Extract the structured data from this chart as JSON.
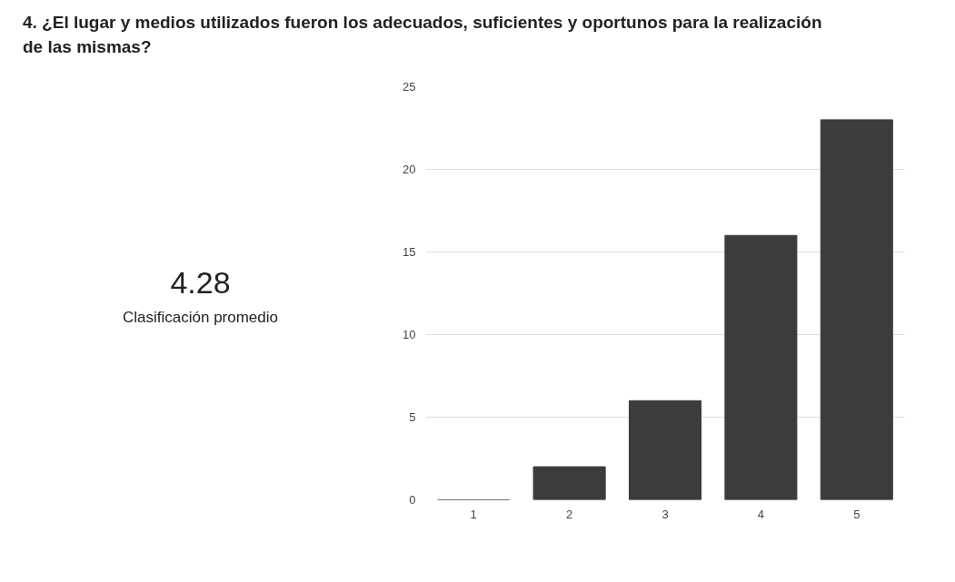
{
  "chart_data": {
    "type": "bar",
    "title": "4. ¿El lugar y medios utilizados fueron los adecuados, suficientes y oportunos para la realización de las mismas?",
    "annotations": [
      "4.28",
      "Clasificación promedio"
    ],
    "categories": [
      "1",
      "2",
      "3",
      "4",
      "5"
    ],
    "values": [
      0,
      2,
      6,
      16,
      23
    ],
    "color": "#3c3c3c",
    "ylim": [
      0,
      25
    ],
    "yticks": [
      0,
      5,
      10,
      15,
      20,
      25
    ],
    "grid": "y"
  }
}
